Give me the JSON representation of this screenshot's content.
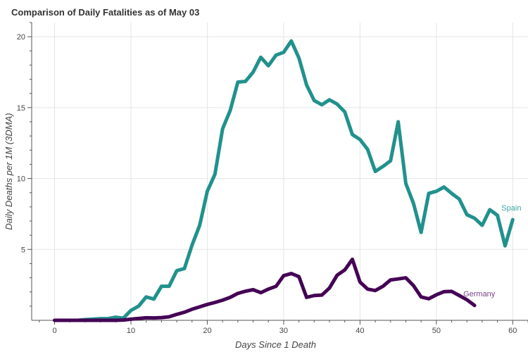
{
  "chart_data": {
    "type": "line",
    "title": "Comparison of Daily Fatalities as of May 03",
    "xlabel": "Days Since 1 Death",
    "ylabel": "Daily Deaths per 1M (3DMA)",
    "xlim": [
      -3,
      62
    ],
    "ylim": [
      0,
      21
    ],
    "x_ticks": [
      0,
      10,
      20,
      30,
      40,
      50,
      60
    ],
    "y_ticks": [
      5,
      10,
      15,
      20
    ],
    "grid": true,
    "series": [
      {
        "name": "Spain",
        "color": "#21918c",
        "label_color": "#3aa7a0",
        "values": [
          0,
          0,
          0,
          0,
          0.05,
          0.08,
          0.12,
          0.12,
          0.22,
          0.15,
          0.7,
          1.0,
          1.65,
          1.5,
          2.4,
          2.4,
          3.5,
          3.65,
          5.3,
          6.7,
          9.1,
          10.3,
          13.5,
          14.8,
          16.8,
          16.85,
          17.5,
          18.55,
          17.95,
          18.7,
          18.9,
          19.7,
          18.5,
          16.6,
          15.5,
          15.2,
          15.55,
          15.25,
          14.7,
          13.1,
          12.75,
          12.05,
          10.5,
          10.85,
          11.25,
          14.0,
          9.65,
          8.25,
          6.2,
          8.95,
          9.1,
          9.4,
          8.95,
          8.55,
          7.45,
          7.2,
          6.7,
          7.8,
          7.4,
          5.25,
          7.1
        ]
      },
      {
        "name": "Germany",
        "color": "#440154",
        "label_color": "#7b3f8c",
        "values": [
          0,
          0,
          0,
          0,
          0,
          0,
          0,
          0,
          0,
          0.02,
          0.08,
          0.13,
          0.18,
          0.17,
          0.19,
          0.25,
          0.42,
          0.57,
          0.78,
          0.95,
          1.12,
          1.26,
          1.42,
          1.62,
          1.9,
          2.05,
          2.16,
          1.95,
          2.2,
          2.4,
          3.15,
          3.3,
          3.08,
          1.62,
          1.75,
          1.78,
          2.28,
          3.18,
          3.55,
          4.3,
          2.7,
          2.2,
          2.1,
          2.4,
          2.85,
          2.92,
          3.0,
          2.45,
          1.65,
          1.52,
          1.8,
          2.02,
          2.04,
          1.75,
          1.45,
          1.05
        ]
      }
    ]
  }
}
